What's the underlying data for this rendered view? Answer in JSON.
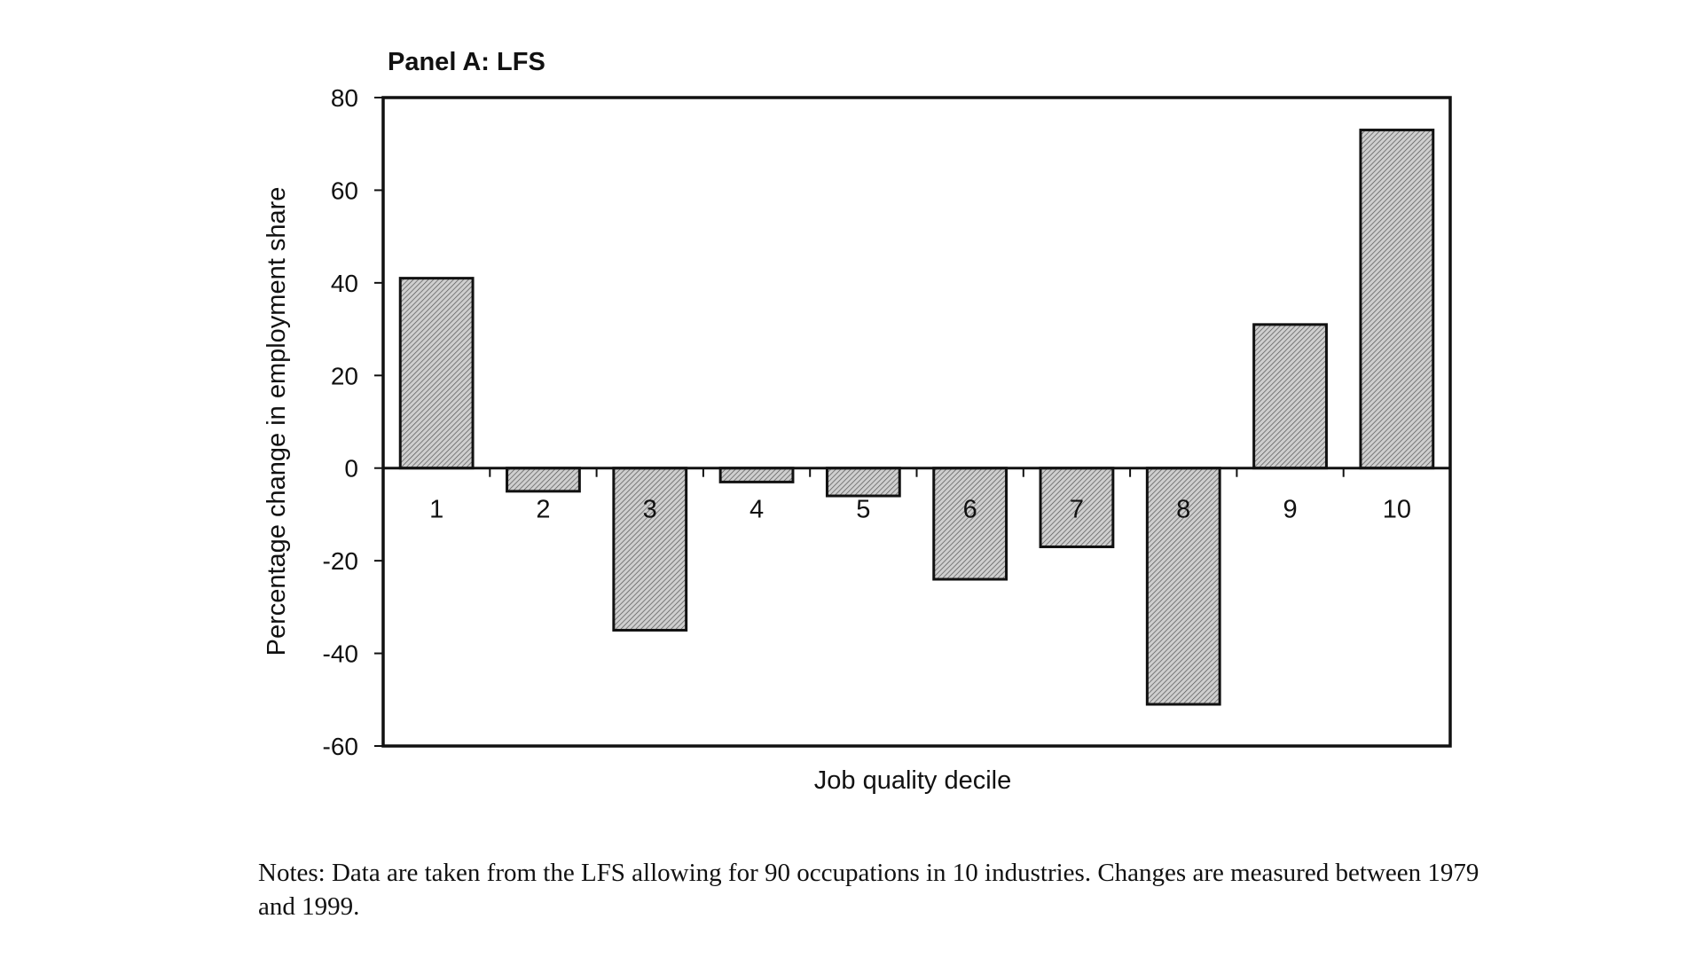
{
  "chart_data": {
    "type": "bar",
    "title": "Panel A: LFS",
    "xlabel": "Job quality decile",
    "ylabel": "Percentage change in employment share",
    "categories": [
      "1",
      "2",
      "3",
      "4",
      "5",
      "6",
      "7",
      "8",
      "9",
      "10"
    ],
    "values": [
      41,
      -5,
      -35,
      -3,
      -6,
      -24,
      -17,
      -51,
      31,
      73
    ],
    "ylim": [
      -60,
      80
    ],
    "yticks": [
      80,
      60,
      40,
      20,
      0,
      -20,
      -40,
      -60
    ],
    "ytick_labels": [
      "80",
      "60",
      "40",
      "20",
      "0",
      "-20",
      "-40",
      "-60"
    ],
    "grid": false,
    "legend": "none",
    "bar_fill": "#c4c4c4",
    "bar_stroke": "#111111"
  },
  "notes": "Notes: Data are taken from the LFS allowing for 90 occupations in 10 industries. Changes are measured between 1979 and 1999."
}
